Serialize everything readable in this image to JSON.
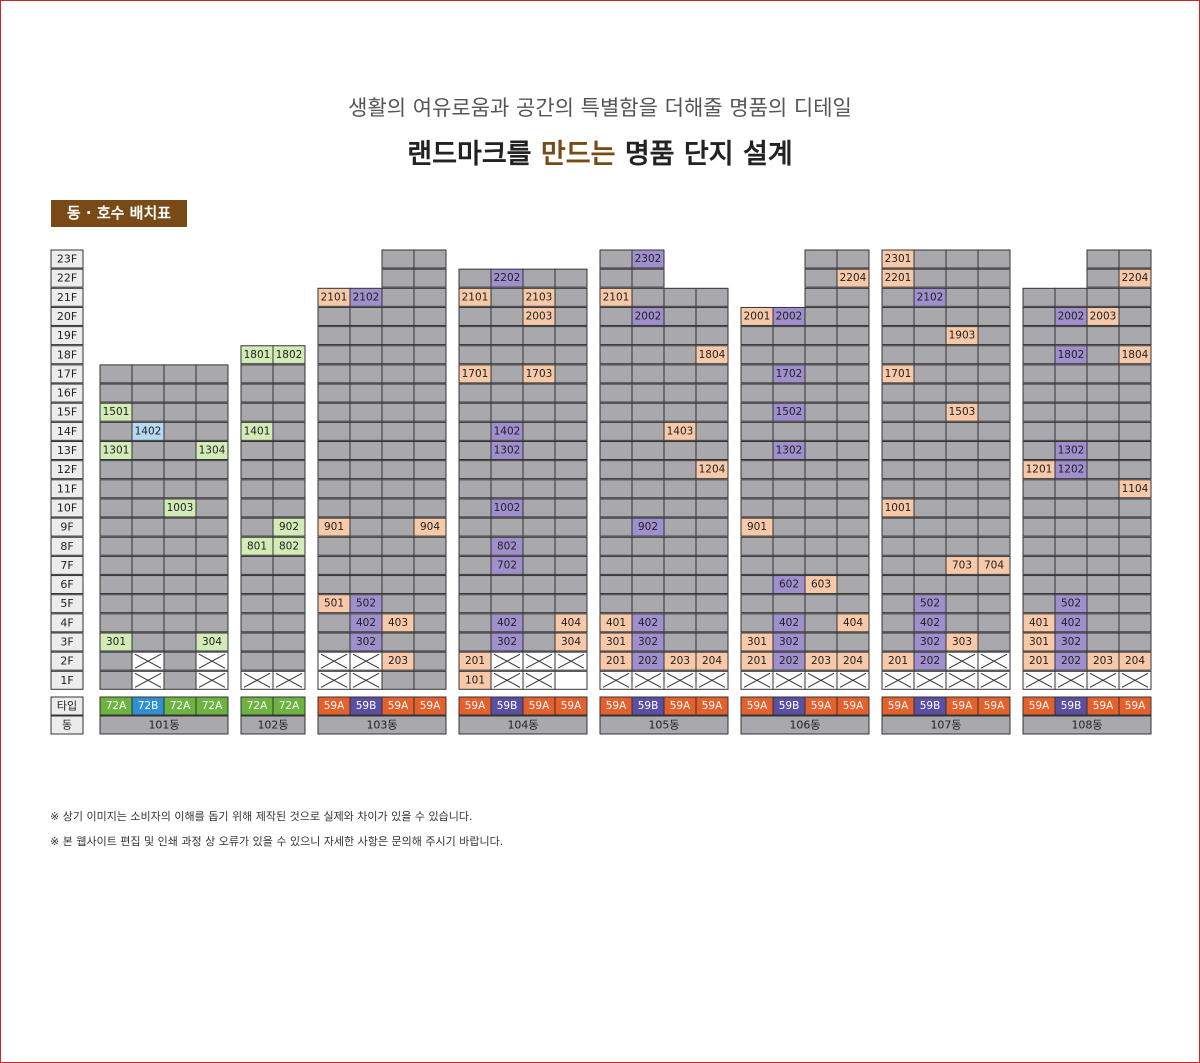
{
  "header": {
    "subtitle": "생활의 여유로움과 공간의 특별함을 더해줄 명품의 디테일",
    "title_pre": "랜드마크를 ",
    "title_hl": "만드는",
    "title_post": " 명품 단지 설계"
  },
  "badge": "동 · 호수 배치표",
  "notes": [
    "※ 상기 이미지는 소비자의 이해를 돕기 위해 제작된 것으로 실제와 차이가 있을 수 있습니다.",
    "※ 본 웹사이트 편집 및 인쇄 과정 상 오류가 있을 수 있으니 자세한 사항은 문의해 주시기 바랍니다."
  ],
  "colors": {
    "unit_gray": "#a9a9ad",
    "label_bg": "#ececec",
    "t72A": "#6db33f",
    "t72B": "#2f8fd0",
    "t59A": "#e4602c",
    "t59B": "#5a4fa3",
    "h72A": "#d3ecb7",
    "h72B": "#b7daf4",
    "h59A": "#f7c9a9",
    "h59B": "#9f8fcd"
  },
  "chart_data": {
    "type": "table",
    "floor_labels": [
      "23F",
      "22F",
      "21F",
      "20F",
      "19F",
      "18F",
      "17F",
      "16F",
      "15F",
      "14F",
      "13F",
      "12F",
      "11F",
      "10F",
      "9F",
      "8F",
      "7F",
      "6F",
      "5F",
      "4F",
      "3F",
      "2F",
      "1F"
    ],
    "row_type_label": "타입",
    "row_dong_label": "동",
    "buildings": [
      {
        "name": "101동",
        "types": [
          "72A",
          "72B",
          "72A",
          "72A"
        ],
        "tops": [
          17,
          17,
          17,
          17
        ],
        "highlights": [
          "1501",
          "1402",
          "1301",
          "1304",
          "1003",
          "301",
          "304"
        ],
        "crossed": [
          [
            2,
            2
          ],
          [
            2,
            4
          ],
          [
            1,
            2
          ],
          [
            1,
            4
          ]
        ],
        "empty": []
      },
      {
        "name": "102동",
        "types": [
          "72A",
          "72A"
        ],
        "tops": [
          18,
          18
        ],
        "highlights": [
          "1801",
          "1802",
          "1401",
          "902",
          "801",
          "802"
        ],
        "crossed": [
          [
            1,
            1
          ],
          [
            1,
            2
          ]
        ],
        "empty": []
      },
      {
        "name": "103동",
        "types": [
          "59A",
          "59B",
          "59A",
          "59A"
        ],
        "tops": [
          21,
          21,
          23,
          23
        ],
        "highlights": [
          "2101",
          "2102",
          "901",
          "904",
          "501",
          "502",
          "402",
          "403",
          "302",
          "203"
        ],
        "crossed": [
          [
            2,
            1
          ],
          [
            2,
            2
          ],
          [
            1,
            1
          ],
          [
            1,
            2
          ]
        ],
        "empty": []
      },
      {
        "name": "104동",
        "types": [
          "59A",
          "59B",
          "59A",
          "59A"
        ],
        "tops": [
          22,
          22,
          22,
          22
        ],
        "highlights": [
          "2202",
          "2101",
          "2103",
          "2003",
          "1701",
          "1703",
          "1402",
          "1302",
          "1002",
          "802",
          "702",
          "402",
          "404",
          "302",
          "304",
          "201",
          "101"
        ],
        "crossed": [
          [
            2,
            2
          ],
          [
            2,
            3
          ],
          [
            2,
            4
          ],
          [
            1,
            2
          ],
          [
            1,
            3
          ]
        ],
        "empty": [
          [
            1,
            4
          ]
        ]
      },
      {
        "name": "105동",
        "types": [
          "59A",
          "59B",
          "59A",
          "59A"
        ],
        "tops": [
          23,
          23,
          21,
          21
        ],
        "highlights": [
          "2302",
          "2101",
          "2002",
          "1804",
          "1403",
          "1204",
          "902",
          "401",
          "402",
          "301",
          "302",
          "201",
          "202",
          "203",
          "204"
        ],
        "crossed": [
          [
            1,
            1
          ],
          [
            1,
            2
          ],
          [
            1,
            3
          ],
          [
            1,
            4
          ]
        ],
        "empty": []
      },
      {
        "name": "106동",
        "types": [
          "59A",
          "59B",
          "59A",
          "59A"
        ],
        "tops": [
          20,
          20,
          23,
          23
        ],
        "highlights": [
          "2204",
          "2001",
          "2002",
          "1702",
          "1502",
          "1302",
          "901",
          "602",
          "603",
          "402",
          "404",
          "301",
          "302",
          "201",
          "202",
          "203",
          "204"
        ],
        "crossed": [
          [
            1,
            1
          ],
          [
            1,
            2
          ],
          [
            1,
            3
          ],
          [
            1,
            4
          ]
        ],
        "empty": []
      },
      {
        "name": "107동",
        "types": [
          "59A",
          "59B",
          "59A",
          "59A"
        ],
        "tops": [
          23,
          23,
          23,
          23
        ],
        "highlights": [
          "2301",
          "2201",
          "2102",
          "1903",
          "1701",
          "1503",
          "1001",
          "703",
          "704",
          "502",
          "402",
          "302",
          "303",
          "201",
          "202"
        ],
        "crossed": [
          [
            2,
            3
          ],
          [
            2,
            4
          ],
          [
            1,
            1
          ],
          [
            1,
            2
          ],
          [
            1,
            3
          ],
          [
            1,
            4
          ]
        ],
        "empty": []
      },
      {
        "name": "108동",
        "types": [
          "59A",
          "59B",
          "59A",
          "59A"
        ],
        "tops": [
          21,
          21,
          23,
          23
        ],
        "highlights": [
          "2204",
          "2002",
          "2003",
          "1802",
          "1804",
          "1302",
          "1201",
          "1202",
          "1104",
          "502",
          "401",
          "402",
          "301",
          "302",
          "201",
          "202",
          "203",
          "204"
        ],
        "crossed": [
          [
            1,
            1
          ],
          [
            1,
            2
          ],
          [
            1,
            3
          ],
          [
            1,
            4
          ]
        ],
        "empty": []
      }
    ]
  }
}
